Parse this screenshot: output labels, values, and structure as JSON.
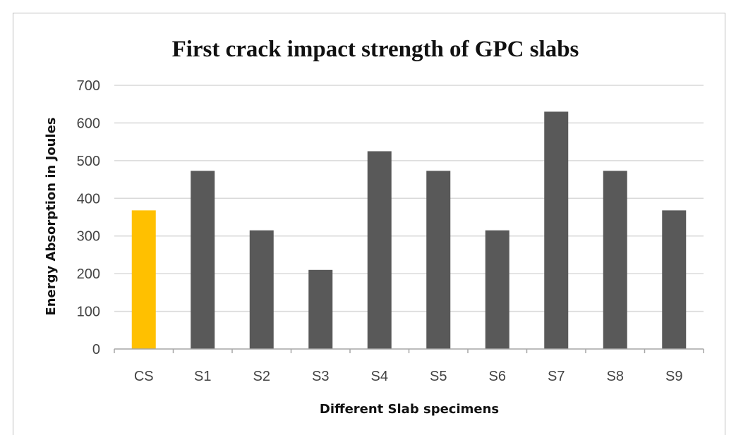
{
  "chart_data": {
    "type": "bar",
    "title": "First crack impact strength of GPC slabs",
    "xlabel": "Different Slab specimens",
    "ylabel": "Energy Absorption in Joules",
    "categories": [
      "CS",
      "S1",
      "S2",
      "S3",
      "S4",
      "S5",
      "S6",
      "S7",
      "S8",
      "S9"
    ],
    "values": [
      368,
      473,
      315,
      210,
      525,
      473,
      315,
      630,
      473,
      368
    ],
    "ylim": [
      0,
      700
    ],
    "yticks": [
      0,
      100,
      200,
      300,
      400,
      500,
      600,
      700
    ],
    "grid": true,
    "legend": "none",
    "colors": {
      "highlight": "#ffc000",
      "bar": "#595959",
      "grid": "#d9d9d9",
      "axis": "#a6a6a6"
    },
    "highlight_category": "CS"
  }
}
